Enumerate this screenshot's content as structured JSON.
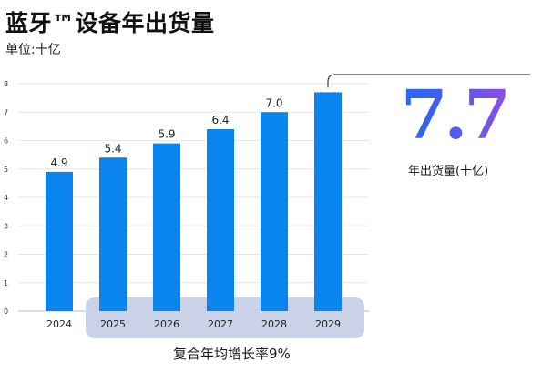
{
  "header": {
    "title": "蓝牙™设备年出货量",
    "unit": "单位:十亿"
  },
  "highlight": {
    "value": "7.7",
    "caption": "年出货量(十亿)"
  },
  "cagr": {
    "label": "复合年均增长率9%",
    "from": "2025",
    "to": "2029"
  },
  "colors": {
    "bar": "#0a85f0",
    "cagr_band": "#c9d2e6",
    "grid": "#e6e6e6",
    "highlight_start": "#1e6cf5",
    "highlight_end": "#8c4fe8"
  },
  "chart_data": {
    "type": "bar",
    "title": "蓝牙™设备年出货量",
    "categories": [
      "2024",
      "2025",
      "2026",
      "2027",
      "2028",
      "2029"
    ],
    "values": [
      4.9,
      5.4,
      5.9,
      6.4,
      7.0,
      7.7
    ],
    "data_labels": [
      "4.9",
      "5.4",
      "5.9",
      "6.4",
      "7.0",
      ""
    ],
    "ylim": [
      0,
      8
    ],
    "yticks": [
      "0",
      "1",
      "2",
      "3",
      "4",
      "5",
      "6",
      "7",
      "8"
    ],
    "grid": true
  }
}
